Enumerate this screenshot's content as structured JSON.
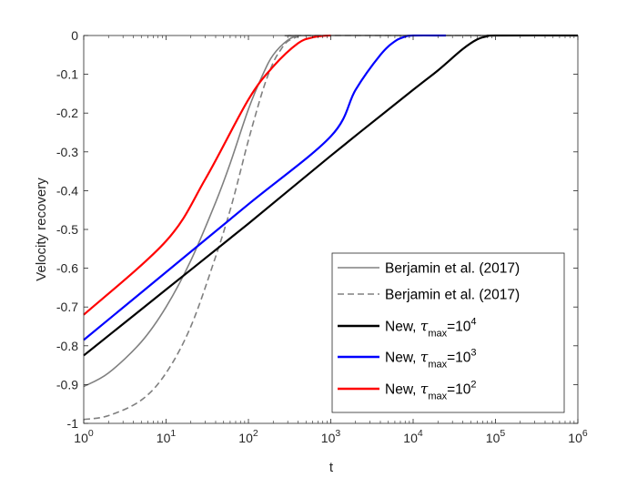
{
  "chart_data": {
    "type": "line",
    "title": "",
    "xlabel": "t",
    "ylabel": "Velocity recovery",
    "xscale": "log",
    "xlim": [
      1,
      1000000
    ],
    "ylim": [
      -1,
      0
    ],
    "x_ticks": [
      {
        "value": 1,
        "base": "10",
        "exp": "0"
      },
      {
        "value": 10,
        "base": "10",
        "exp": "1"
      },
      {
        "value": 100,
        "base": "10",
        "exp": "2"
      },
      {
        "value": 1000,
        "base": "10",
        "exp": "3"
      },
      {
        "value": 10000,
        "base": "10",
        "exp": "4"
      },
      {
        "value": 100000,
        "base": "10",
        "exp": "5"
      },
      {
        "value": 1000000,
        "base": "10",
        "exp": "6"
      }
    ],
    "y_ticks": [
      {
        "value": 0,
        "label": "0"
      },
      {
        "value": -0.1,
        "label": "-0.1"
      },
      {
        "value": -0.2,
        "label": "-0.2"
      },
      {
        "value": -0.3,
        "label": "-0.3"
      },
      {
        "value": -0.4,
        "label": "-0.4"
      },
      {
        "value": -0.5,
        "label": "-0.5"
      },
      {
        "value": -0.6,
        "label": "-0.6"
      },
      {
        "value": -0.7,
        "label": "-0.7"
      },
      {
        "value": -0.8,
        "label": "-0.8"
      },
      {
        "value": -0.9,
        "label": "-0.9"
      },
      {
        "value": -1,
        "label": "-1"
      }
    ],
    "grid": false,
    "legend_position": "bottom-right",
    "series": [
      {
        "name": "Berjamin et al. (2017)",
        "color": "#808080",
        "style": "solid",
        "x": [
          1,
          2,
          5,
          10,
          20,
          40,
          60,
          100,
          150,
          200,
          300,
          400,
          600,
          1000000
        ],
        "y": [
          -0.905,
          -0.87,
          -0.79,
          -0.7,
          -0.58,
          -0.43,
          -0.33,
          -0.19,
          -0.1,
          -0.05,
          -0.012,
          -0.002,
          0,
          0
        ]
      },
      {
        "name": "Berjamin et al. (2017)",
        "color": "#808080",
        "style": "dashed",
        "x": [
          1,
          2,
          5,
          10,
          20,
          40,
          60,
          80,
          100,
          150,
          200,
          250,
          300,
          400,
          500,
          1000000
        ],
        "y": [
          -0.99,
          -0.98,
          -0.94,
          -0.87,
          -0.75,
          -0.57,
          -0.45,
          -0.35,
          -0.27,
          -0.14,
          -0.07,
          -0.035,
          -0.015,
          -0.003,
          0,
          0
        ]
      },
      {
        "name_parts": {
          "prefix": "New, ",
          "symbol": "τ",
          "sub": "max",
          "suffix": "=10",
          "exp": "4"
        },
        "color": "#000000",
        "style": "solid",
        "x": [
          1,
          10,
          100,
          1000,
          10000,
          20000,
          40000,
          60000,
          80000,
          100000,
          1000000
        ],
        "y": [
          -0.825,
          -0.655,
          -0.485,
          -0.31,
          -0.14,
          -0.09,
          -0.035,
          -0.01,
          -0.002,
          0,
          0
        ]
      },
      {
        "name_parts": {
          "prefix": "New, ",
          "symbol": "τ",
          "sub": "max",
          "suffix": "=10",
          "exp": "3"
        },
        "color": "#0000ff",
        "style": "solid",
        "x": [
          1,
          10,
          100,
          1000,
          2000,
          4000,
          6000,
          8000,
          10000,
          25000
        ],
        "y": [
          -0.785,
          -0.61,
          -0.435,
          -0.26,
          -0.14,
          -0.05,
          -0.015,
          -0.003,
          0,
          0
        ]
      },
      {
        "name_parts": {
          "prefix": "New, ",
          "symbol": "τ",
          "sub": "max",
          "suffix": "=10",
          "exp": "2"
        },
        "color": "#ff0000",
        "style": "solid",
        "x": [
          1,
          10,
          30,
          100,
          200,
          400,
          600,
          800,
          1000
        ],
        "y": [
          -0.72,
          -0.53,
          -0.37,
          -0.165,
          -0.08,
          -0.02,
          -0.005,
          -0.001,
          0
        ]
      }
    ]
  }
}
